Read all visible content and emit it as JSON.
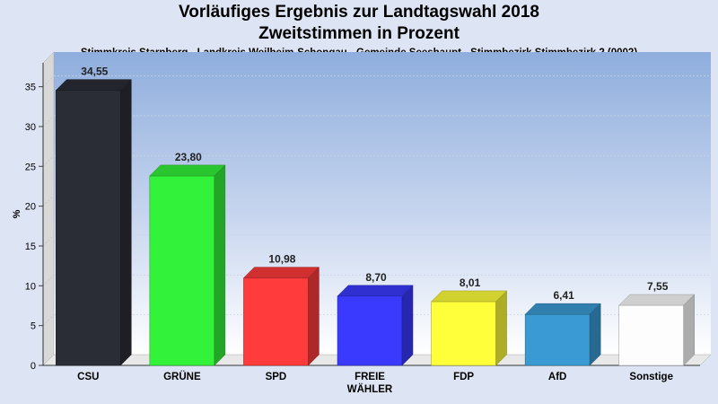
{
  "chart_data": {
    "type": "bar",
    "title": "Vorläufiges Ergebnis zur Landtagswahl 2018",
    "subtitle": "Zweitstimmen in Prozent",
    "location": "Stimmkreis Starnberg - Landkreis Weilheim-Schongau - Gemeinde Seeshaupt - Stimmbezirk Stimmbezirk 2 (0002)",
    "xlabel": "",
    "ylabel": "%",
    "ylim": [
      0,
      38
    ],
    "yticks": [
      0,
      5,
      10,
      15,
      20,
      25,
      30,
      35
    ],
    "grid": true,
    "categories": [
      "CSU",
      "GRÜNE",
      "SPD",
      "FREIE\nWÄHLER",
      "FDP",
      "AfD",
      "Sonstige"
    ],
    "values": [
      34.55,
      23.8,
      10.98,
      8.7,
      8.01,
      6.41,
      7.55
    ],
    "value_labels": [
      "34,55",
      "23,80",
      "10,98",
      "8,70",
      "8,01",
      "6,41",
      "7,55"
    ],
    "colors": [
      "#2a2d36",
      "#33f23a",
      "#ff3b3b",
      "#3a3aff",
      "#ffff3a",
      "#3a9bd4",
      "#fdfdfd"
    ]
  }
}
